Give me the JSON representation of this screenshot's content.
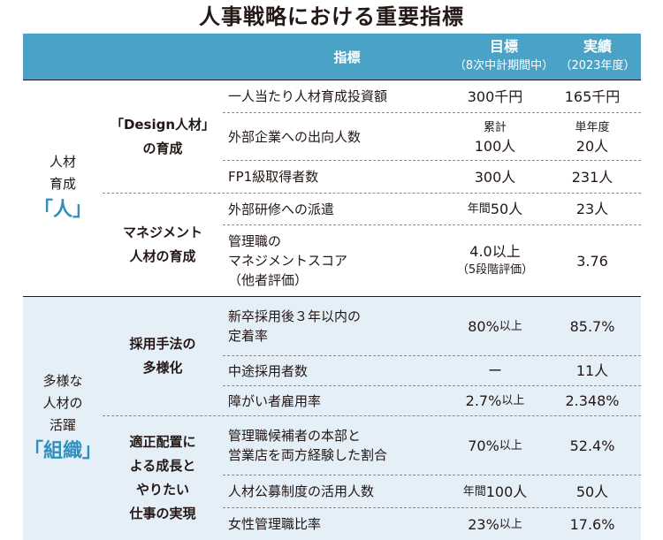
{
  "title": "人事戦略における重要指標",
  "header": {
    "indicator": "指標",
    "target": "目標",
    "target_note": "（8次中計期間中）",
    "actual": "実績",
    "actual_note": "（2023年度）"
  },
  "sections": [
    {
      "category_line1": "人材",
      "category_line2": "育成",
      "category_kanji": "「人」",
      "subgroups": [
        {
          "name_line1": "「Design人材」",
          "name_line2": "の育成",
          "rows": [
            {
              "indicator_line1": "一人当たり人材育成投資額",
              "target": "300千円",
              "actual": "165千円"
            },
            {
              "indicator_line1": "外部企業への出向人数",
              "target_line1": "累計",
              "target_line2": "100人",
              "actual_line1": "単年度",
              "actual_line2": "20人"
            },
            {
              "indicator_line1": "FP1級取得者数",
              "target": "300人",
              "actual": "231人"
            }
          ]
        },
        {
          "name_line1": "マネジメント",
          "name_line2": "人材の育成",
          "rows": [
            {
              "indicator_line1": "外部研修への派遣",
              "target_prefix": "年間",
              "target_main": "50人",
              "actual": "23人"
            },
            {
              "indicator_line1": "管理職の",
              "indicator_line2": "マネジメントスコア",
              "indicator_line3": "（他者評価）",
              "target_line1": "4.0以上",
              "target_line2": "（5段階評価）",
              "actual": "3.76"
            }
          ]
        }
      ]
    },
    {
      "category_line1": "多様な",
      "category_line2": "人材の",
      "category_line3": "活躍",
      "category_kanji": "「組織」",
      "subgroups": [
        {
          "name_line1": "採用手法の",
          "name_line2": "多様化",
          "rows": [
            {
              "indicator_line1": "新卒採用後３年以内の",
              "indicator_line2": "定着率",
              "target_main": "80%",
              "target_suffix": "以上",
              "actual": "85.7%"
            },
            {
              "indicator_line1": "中途採用者数",
              "target": "ー",
              "actual": "11人"
            },
            {
              "indicator_line1": "障がい者雇用率",
              "target_main": "2.7%",
              "target_suffix": "以上",
              "actual": "2.348%"
            }
          ]
        },
        {
          "name_line1": "適正配置に",
          "name_line2": "よる成長と",
          "name_line3": "やりたい",
          "name_line4": "仕事の実現",
          "rows": [
            {
              "indicator_line1": "管理職候補者の本部と",
              "indicator_line2": "営業店を両方経験した割合",
              "target_main": "70%",
              "target_suffix": "以上",
              "actual": "52.4%"
            },
            {
              "indicator_line1": "人材公募制度の活用人数",
              "target_prefix": "年間",
              "target_main": "100人",
              "actual": "50人"
            },
            {
              "indicator_line1": "女性管理職比率",
              "target_main": "23%",
              "target_suffix": "以上",
              "actual": "17.6%"
            }
          ]
        }
      ]
    }
  ]
}
